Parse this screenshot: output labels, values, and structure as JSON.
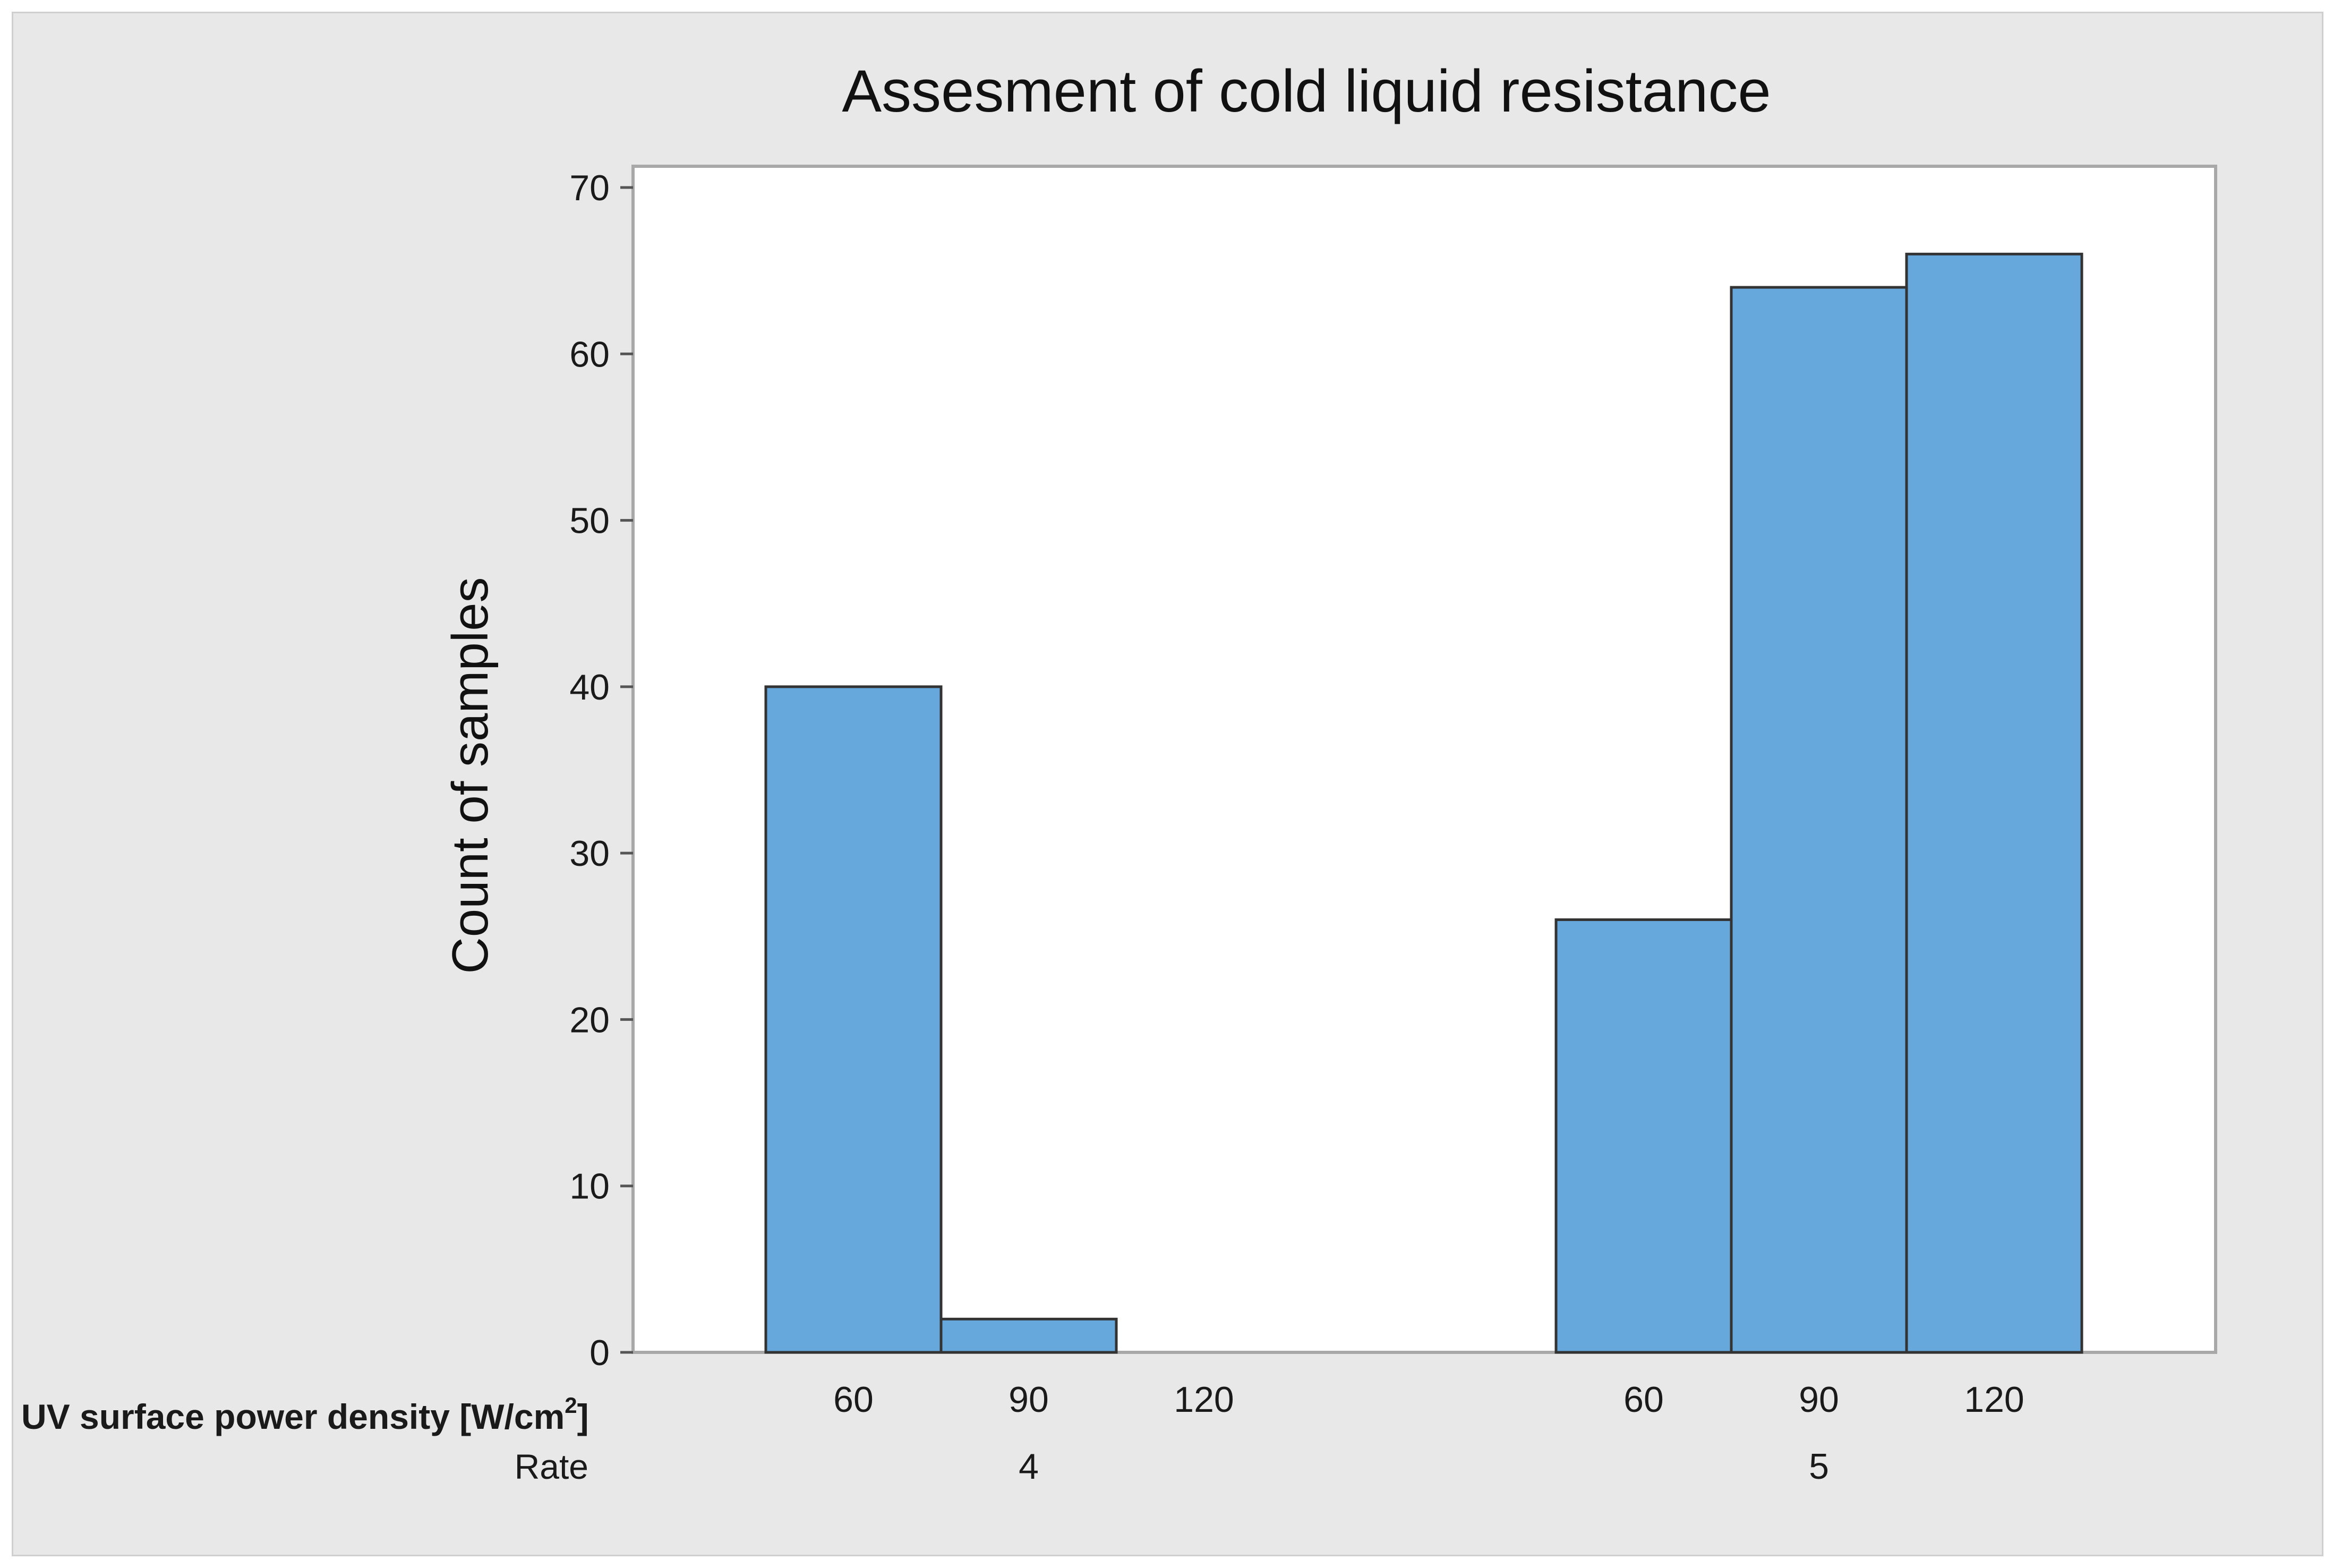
{
  "chart_data": {
    "type": "bar",
    "title": "Assesment of cold liquid resistance",
    "ylabel": "Count of samples",
    "ylim": [
      0,
      70
    ],
    "yticks": [
      "0",
      "10",
      "20",
      "30",
      "40",
      "50",
      "60",
      "70"
    ],
    "row_labels": {
      "density": "UV surface power density [W/cm",
      "density_sup": "2",
      "density_close": "]",
      "rate": "Rate"
    },
    "groups": [
      {
        "rate": "4",
        "categories": [
          "60",
          "90",
          "120"
        ],
        "values": [
          40,
          2,
          0
        ]
      },
      {
        "rate": "5",
        "categories": [
          "60",
          "90",
          "120"
        ],
        "values": [
          26,
          64,
          66
        ]
      }
    ],
    "bar_color": "#66a8dc",
    "bar_edge_color": "#333333",
    "grid": false,
    "legend": "none"
  }
}
